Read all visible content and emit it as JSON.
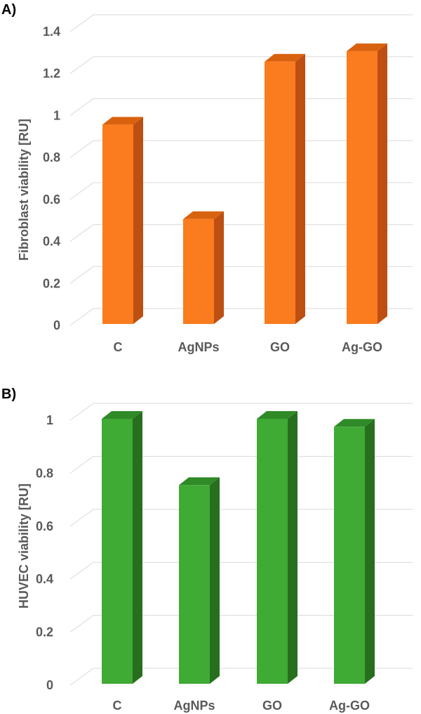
{
  "chart_data": [
    {
      "panel_label": "A)",
      "type": "bar",
      "style": "3d-column",
      "categories": [
        "C",
        "AgNPs",
        "GO",
        "Ag-GO"
      ],
      "values": [
        0.95,
        0.5,
        1.25,
        1.3
      ],
      "yticks": [
        "0",
        "0.2",
        "0.4",
        "0.6",
        "0.8",
        "1",
        "1.2",
        "1.4"
      ],
      "ylim": [
        0,
        1.4
      ],
      "ylabel": "Fibroblast viability [RU]",
      "xlabel": "",
      "colors": {
        "front": "#fa7c1f",
        "side": "#bd4f12",
        "top": "#d9620f"
      },
      "grid": true
    },
    {
      "panel_label": "B)",
      "type": "bar",
      "style": "3d-column",
      "categories": [
        "C",
        "AgNPs",
        "GO",
        "Ag-GO"
      ],
      "values": [
        1.0,
        0.75,
        1.0,
        0.97
      ],
      "yticks": [
        "0",
        "0.2",
        "0.4",
        "0.6",
        "0.8",
        "1"
      ],
      "ylim": [
        0,
        1
      ],
      "ylabel": "HUVEC viability [RU]",
      "xlabel": "",
      "colors": {
        "front": "#3faa34",
        "side": "#276f1f",
        "top": "#2f8a27"
      },
      "grid": true
    }
  ]
}
